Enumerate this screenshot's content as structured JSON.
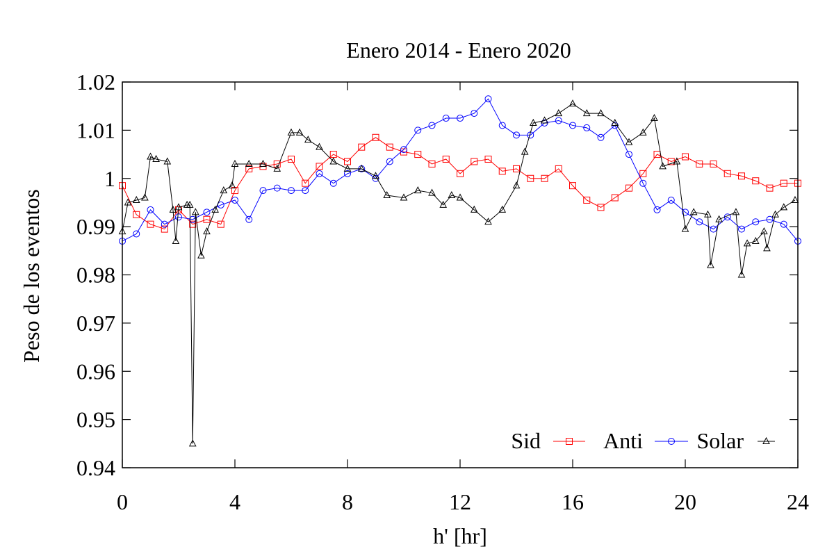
{
  "chart_data": {
    "type": "line",
    "title": "Enero 2014 - Enero 2020",
    "xlabel": "h' [hr]",
    "ylabel": "Peso de los eventos",
    "xlim": [
      0,
      24
    ],
    "ylim": [
      0.94,
      1.02
    ],
    "x_ticks": [
      "0",
      "4",
      "8",
      "12",
      "16",
      "20",
      "24"
    ],
    "y_ticks": [
      "0.94",
      "0.95",
      "0.96",
      "0.97",
      "0.98",
      "0.99",
      "1",
      "1.01",
      "1.02"
    ],
    "grid": false,
    "legend_position": "bottom-right",
    "series": [
      {
        "name": "Sid",
        "color": "#ff0000",
        "marker": "square",
        "x": [
          0,
          0.5,
          1,
          1.5,
          2,
          2.5,
          3,
          3.5,
          4,
          4.5,
          5,
          5.5,
          6,
          6.5,
          7,
          7.5,
          8,
          8.5,
          9,
          9.5,
          10,
          10.5,
          11,
          11.5,
          12,
          12.5,
          13,
          13.5,
          14,
          14.5,
          15,
          15.5,
          16,
          16.5,
          17,
          17.5,
          18,
          18.5,
          19,
          19.5,
          20,
          20.5,
          21,
          21.5,
          22,
          22.5,
          23,
          23.5,
          24
        ],
        "y": [
          0.9985,
          0.9925,
          0.9905,
          0.9895,
          0.9935,
          0.9905,
          0.9915,
          0.9905,
          0.9975,
          1.002,
          1.0025,
          1.003,
          1.004,
          0.999,
          1.0025,
          1.005,
          1.0035,
          1.0065,
          1.0085,
          1.0065,
          1.0055,
          1.005,
          1.003,
          1.004,
          1.001,
          1.0035,
          1.004,
          1.0015,
          1.002,
          1.0,
          1.0,
          1.002,
          0.9985,
          0.9955,
          0.994,
          0.996,
          0.998,
          1.001,
          1.005,
          1.0035,
          1.0045,
          1.003,
          1.003,
          1.001,
          1.0005,
          0.9995,
          0.998,
          0.999,
          0.999
        ]
      },
      {
        "name": "Anti",
        "color": "#0000ff",
        "marker": "circle",
        "x": [
          0,
          0.5,
          1,
          1.5,
          2,
          2.5,
          3,
          3.5,
          4,
          4.5,
          5,
          5.5,
          6,
          6.5,
          7,
          7.5,
          8,
          8.5,
          9,
          9.5,
          10,
          10.5,
          11,
          11.5,
          12,
          12.5,
          13,
          13.5,
          14,
          14.5,
          15,
          15.5,
          16,
          16.5,
          17,
          17.5,
          18,
          18.5,
          19,
          19.5,
          20,
          20.5,
          21,
          21.5,
          22,
          22.5,
          23,
          23.5,
          24
        ],
        "y": [
          0.987,
          0.9885,
          0.9935,
          0.9905,
          0.992,
          0.9915,
          0.993,
          0.9945,
          0.9955,
          0.9915,
          0.9975,
          0.998,
          0.9975,
          0.9975,
          1.001,
          0.999,
          1.001,
          1.002,
          1.0,
          1.0035,
          1.006,
          1.01,
          1.011,
          1.0125,
          1.0125,
          1.0135,
          1.0165,
          1.011,
          1.009,
          1.009,
          1.0115,
          1.012,
          1.011,
          1.0105,
          1.0085,
          1.011,
          1.005,
          0.999,
          0.9935,
          0.9955,
          0.993,
          0.991,
          0.9895,
          0.992,
          0.9895,
          0.991,
          0.9915,
          0.9905,
          0.987
        ]
      },
      {
        "name": "Solar",
        "color": "#000000",
        "marker": "triangle",
        "x": [
          0,
          0.2,
          0.5,
          0.8,
          1.0,
          1.2,
          1.6,
          1.8,
          1.9,
          2.0,
          2.3,
          2.4,
          2.5,
          2.6,
          2.8,
          3.0,
          3.3,
          3.6,
          3.9,
          4.0,
          4.5,
          5.0,
          5.5,
          6.0,
          6.3,
          6.6,
          7.0,
          7.5,
          8.0,
          8.5,
          9.0,
          9.4,
          10.0,
          10.5,
          11.0,
          11.4,
          11.7,
          12.0,
          12.5,
          13.0,
          13.5,
          14.0,
          14.3,
          14.6,
          15.0,
          15.5,
          16.0,
          16.5,
          17.0,
          17.5,
          18.0,
          18.5,
          18.9,
          19.2,
          19.7,
          20.0,
          20.3,
          20.8,
          20.9,
          21.2,
          21.8,
          22.0,
          22.2,
          22.5,
          22.8,
          22.9,
          23.2,
          23.5,
          23.9
        ],
        "y": [
          0.989,
          0.995,
          0.9955,
          0.996,
          1.0045,
          1.004,
          1.0035,
          0.9935,
          0.987,
          0.994,
          0.9945,
          0.9945,
          0.945,
          0.993,
          0.984,
          0.989,
          0.9935,
          0.9975,
          0.9985,
          1.003,
          1.003,
          1.003,
          1.002,
          1.0095,
          1.0095,
          1.008,
          1.0065,
          1.0035,
          1.002,
          1.002,
          1.0005,
          0.9965,
          0.996,
          0.9975,
          0.997,
          0.9945,
          0.9965,
          0.996,
          0.9935,
          0.991,
          0.9935,
          0.9985,
          1.0055,
          1.0115,
          1.012,
          1.0135,
          1.0155,
          1.0135,
          1.0135,
          1.0115,
          1.0075,
          1.0095,
          1.0125,
          1.0025,
          1.0035,
          0.9895,
          0.993,
          0.9925,
          0.982,
          0.9915,
          0.993,
          0.98,
          0.9865,
          0.987,
          0.989,
          0.9855,
          0.9925,
          0.994,
          0.9955
        ]
      }
    ]
  }
}
